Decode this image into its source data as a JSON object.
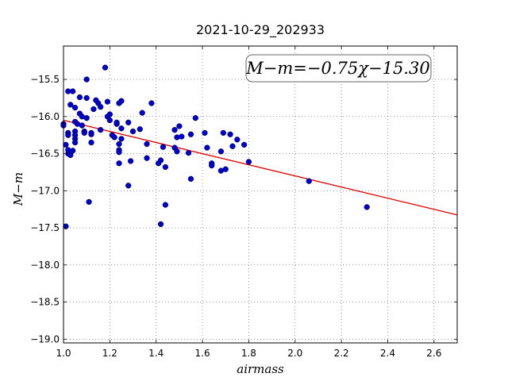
{
  "chart_data": {
    "type": "scatter",
    "title": "2021-10-29_202933",
    "xlabel": "airmass",
    "ylabel": "M−m",
    "xlim": [
      1.0,
      2.7
    ],
    "ylim": [
      -19.05,
      -15.05
    ],
    "y_inverted": false,
    "grid": true,
    "x_ticks": [
      "1.0",
      "1.2",
      "1.4",
      "1.6",
      "1.8",
      "2.0",
      "2.2",
      "2.4",
      "2.6"
    ],
    "x_tick_values": [
      1.0,
      1.2,
      1.4,
      1.6,
      1.8,
      2.0,
      2.2,
      2.4,
      2.6
    ],
    "y_ticks": [
      "−15.5",
      "−16.0",
      "−16.5",
      "−17.0",
      "−17.5",
      "−18.0",
      "−18.5",
      "−19.0"
    ],
    "y_tick_values": [
      -15.5,
      -16.0,
      -16.5,
      -17.0,
      -17.5,
      -18.0,
      -18.5,
      -19.0
    ],
    "annotation": "M−m=−0.75χ−15.30",
    "fit": {
      "slope": -0.75,
      "intercept": -15.3,
      "color": "#dd0000"
    },
    "point_color": "#0000cc",
    "points": [
      [
        1.0,
        -16.1
      ],
      [
        1.0,
        -16.12
      ],
      [
        1.01,
        -16.38
      ],
      [
        1.01,
        -17.48
      ],
      [
        1.02,
        -16.22
      ],
      [
        1.02,
        -16.25
      ],
      [
        1.02,
        -16.5
      ],
      [
        1.02,
        -16.45
      ],
      [
        1.02,
        -15.66
      ],
      [
        1.03,
        -15.84
      ],
      [
        1.03,
        -16.52
      ],
      [
        1.04,
        -16.46
      ],
      [
        1.04,
        -15.66
      ],
      [
        1.05,
        -15.88
      ],
      [
        1.05,
        -16.07
      ],
      [
        1.05,
        -16.2
      ],
      [
        1.05,
        -16.25
      ],
      [
        1.05,
        -16.3
      ],
      [
        1.05,
        -16.35
      ],
      [
        1.06,
        -16.1
      ],
      [
        1.07,
        -15.96
      ],
      [
        1.07,
        -15.74
      ],
      [
        1.08,
        -16.12
      ],
      [
        1.08,
        -16.0
      ],
      [
        1.09,
        -16.2
      ],
      [
        1.09,
        -16.22
      ],
      [
        1.1,
        -15.75
      ],
      [
        1.1,
        -16.02
      ],
      [
        1.1,
        -15.5
      ],
      [
        1.11,
        -17.15
      ],
      [
        1.12,
        -16.24
      ],
      [
        1.12,
        -16.22
      ],
      [
        1.12,
        -16.35
      ],
      [
        1.13,
        -15.9
      ],
      [
        1.14,
        -15.78
      ],
      [
        1.15,
        -15.82
      ],
      [
        1.16,
        -15.87
      ],
      [
        1.16,
        -16.18
      ],
      [
        1.18,
        -15.34
      ],
      [
        1.19,
        -15.8
      ],
      [
        1.19,
        -16.0
      ],
      [
        1.2,
        -15.97
      ],
      [
        1.2,
        -16.05
      ],
      [
        1.21,
        -16.25
      ],
      [
        1.22,
        -16.28
      ],
      [
        1.23,
        -16.1
      ],
      [
        1.23,
        -16.08
      ],
      [
        1.24,
        -16.37
      ],
      [
        1.24,
        -16.45
      ],
      [
        1.24,
        -16.48
      ],
      [
        1.24,
        -16.63
      ],
      [
        1.24,
        -15.82
      ],
      [
        1.25,
        -15.79
      ],
      [
        1.25,
        -16.3
      ],
      [
        1.25,
        -16.16
      ],
      [
        1.28,
        -16.08
      ],
      [
        1.28,
        -16.93
      ],
      [
        1.29,
        -16.6
      ],
      [
        1.3,
        -16.2
      ],
      [
        1.33,
        -16.17
      ],
      [
        1.34,
        -15.95
      ],
      [
        1.36,
        -16.37
      ],
      [
        1.36,
        -16.56
      ],
      [
        1.38,
        -15.82
      ],
      [
        1.41,
        -16.63
      ],
      [
        1.42,
        -16.59
      ],
      [
        1.42,
        -17.45
      ],
      [
        1.43,
        -16.41
      ],
      [
        1.44,
        -16.68
      ],
      [
        1.44,
        -17.19
      ],
      [
        1.48,
        -16.42
      ],
      [
        1.48,
        -16.18
      ],
      [
        1.49,
        -16.47
      ],
      [
        1.49,
        -16.28
      ],
      [
        1.5,
        -16.13
      ],
      [
        1.51,
        -16.27
      ],
      [
        1.54,
        -16.49
      ],
      [
        1.55,
        -16.24
      ],
      [
        1.55,
        -16.84
      ],
      [
        1.57,
        -16.02
      ],
      [
        1.61,
        -16.22
      ],
      [
        1.62,
        -16.42
      ],
      [
        1.64,
        -16.63
      ],
      [
        1.64,
        -16.66
      ],
      [
        1.68,
        -16.73
      ],
      [
        1.68,
        -16.47
      ],
      [
        1.69,
        -16.22
      ],
      [
        1.7,
        -16.71
      ],
      [
        1.72,
        -16.24
      ],
      [
        1.73,
        -16.4
      ],
      [
        1.75,
        -16.31
      ],
      [
        1.78,
        -16.38
      ],
      [
        1.8,
        -16.61
      ],
      [
        2.06,
        -16.87
      ],
      [
        2.31,
        -17.22
      ]
    ]
  }
}
